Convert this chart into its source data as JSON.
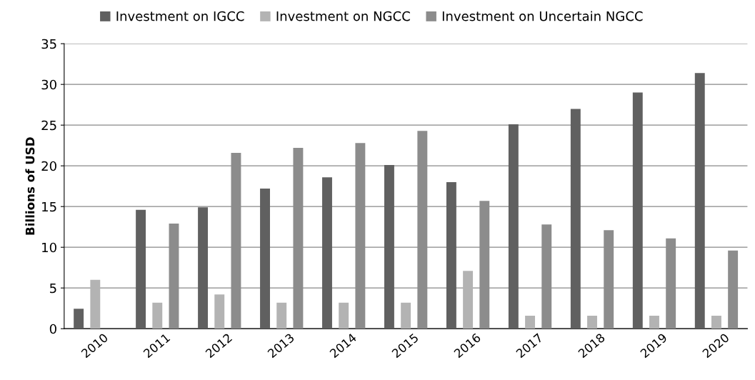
{
  "chart_data": {
    "type": "bar",
    "ylabel": "Billions of USD",
    "categories": [
      "2010",
      "2011",
      "2012",
      "2013",
      "2014",
      "2015",
      "2016",
      "2017",
      "2018",
      "2019",
      "2020"
    ],
    "series": [
      {
        "name": "Investment on IGCC",
        "color": "#606060",
        "values": [
          2.45,
          14.6,
          14.9,
          17.2,
          18.6,
          20.1,
          18.0,
          25.1,
          27.0,
          29.0,
          31.4
        ]
      },
      {
        "name": "Investment on NGCC",
        "color": "#b3b3b3",
        "values": [
          6.0,
          3.2,
          4.2,
          3.2,
          3.2,
          3.2,
          7.1,
          1.6,
          1.6,
          1.6,
          1.6
        ]
      },
      {
        "name": "Investment on Uncertain NGCC",
        "color": "#8c8c8c",
        "values": [
          null,
          12.9,
          21.6,
          22.2,
          22.8,
          24.3,
          15.7,
          12.8,
          12.1,
          11.1,
          9.6
        ]
      }
    ],
    "ylim": [
      0,
      35
    ],
    "yticks": [
      0,
      5,
      10,
      15,
      20,
      25,
      30,
      35
    ],
    "grid": "y",
    "legend": "top"
  }
}
